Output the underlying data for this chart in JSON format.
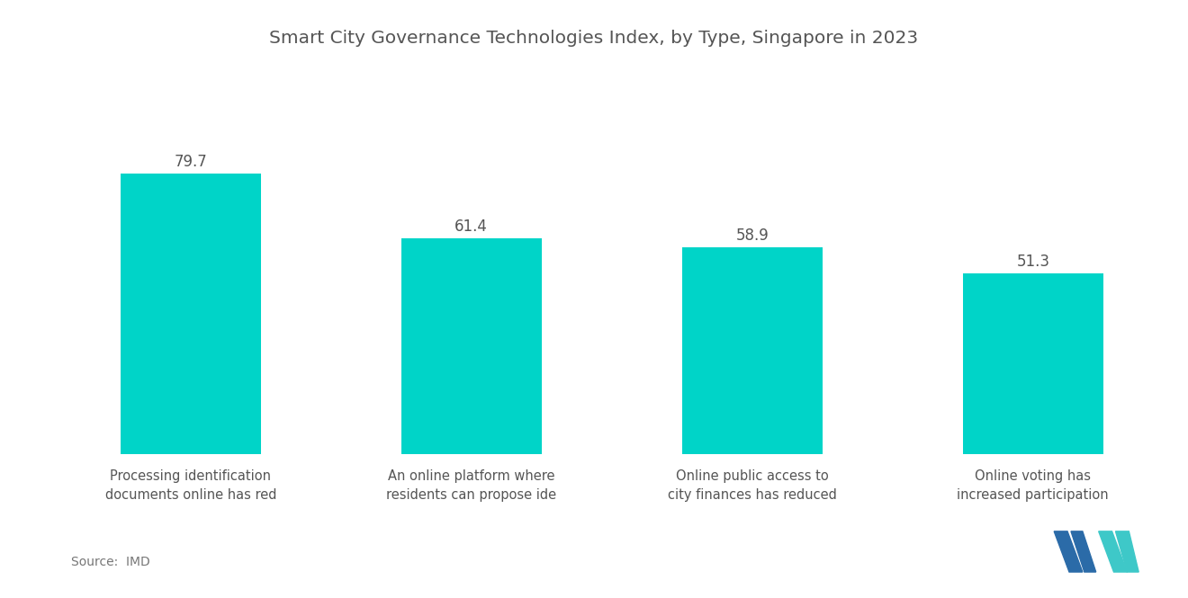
{
  "title": "Smart City Governance Technologies Index, by Type, Singapore in 2023",
  "categories": [
    "Processing identification\ndocuments online has red",
    "An online platform where\nresidents can propose ide",
    "Online public access to\ncity finances has reduced",
    "Online voting has\nincreased participation"
  ],
  "values": [
    79.7,
    61.4,
    58.9,
    51.3
  ],
  "bar_color": "#00D4C8",
  "background_color": "#ffffff",
  "title_fontsize": 14.5,
  "label_fontsize": 10.5,
  "value_fontsize": 12,
  "source_text": "Source:  IMD",
  "ylim": [
    0,
    95
  ],
  "logo_blue": "#2B6BA8",
  "logo_teal": "#3EC8C8"
}
